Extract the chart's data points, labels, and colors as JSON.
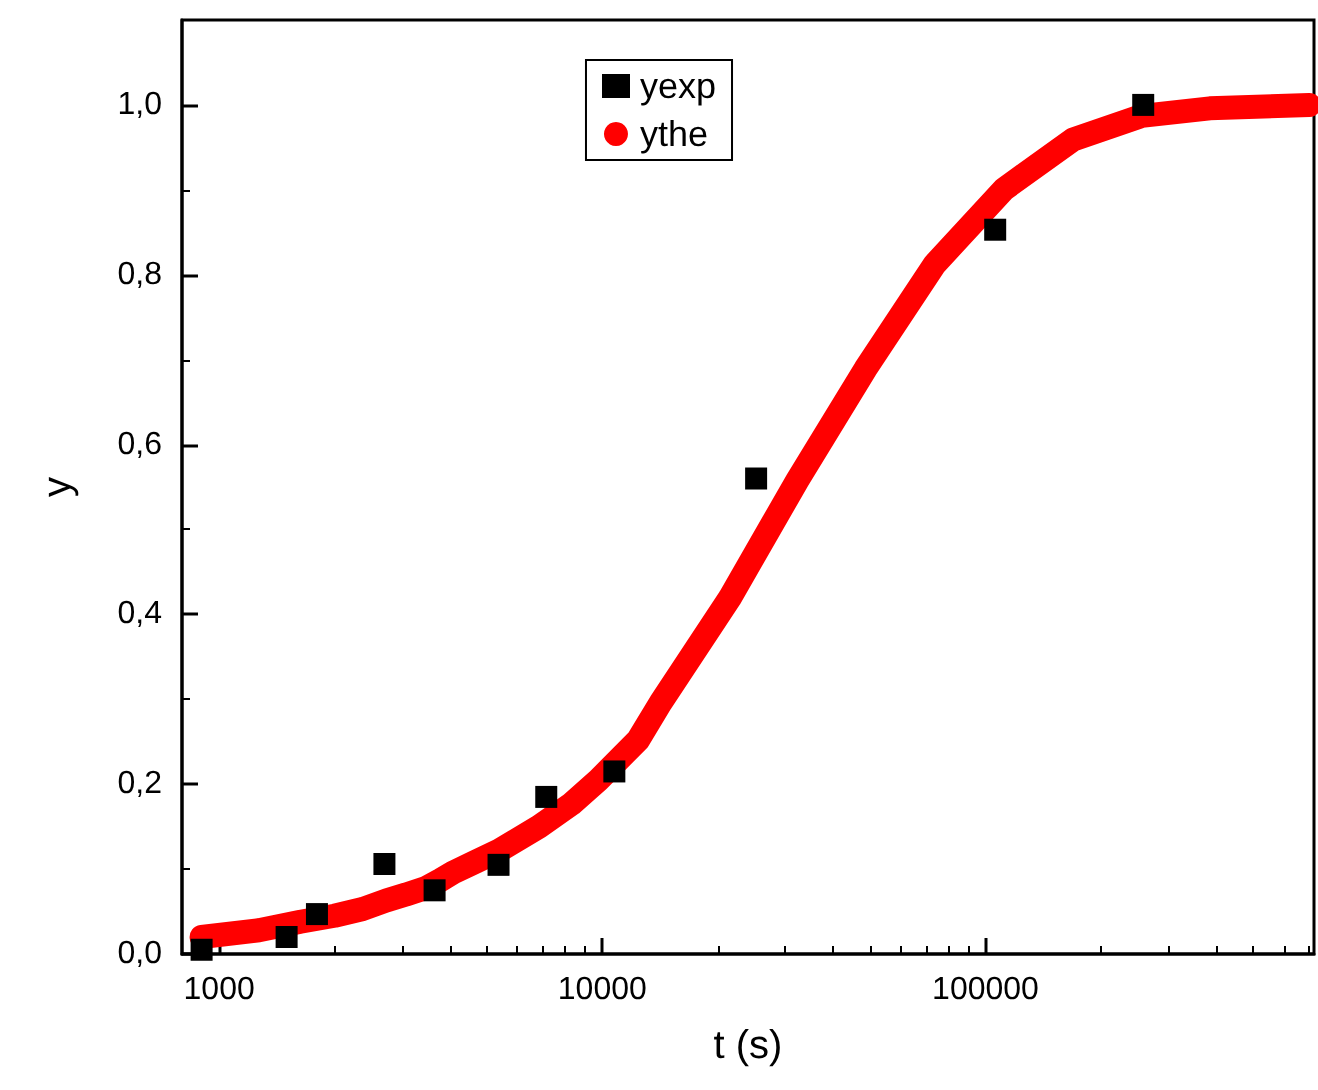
{
  "chart_data": {
    "type": "scatter",
    "xlabel": "t (s)",
    "ylabel": "y",
    "log": "x",
    "xlim": [
      800,
      720000
    ],
    "xticks": [
      1000,
      10000,
      100000
    ],
    "ylim": [
      0,
      1.1
    ],
    "yticks": [
      {
        "value": 0,
        "label": "0,0"
      },
      {
        "value": 0.2,
        "label": "0,2"
      },
      {
        "value": 0.4,
        "label": "0,4"
      },
      {
        "value": 0.6,
        "label": "0,6"
      },
      {
        "value": 0.8,
        "label": "0,8"
      },
      {
        "value": 1.0,
        "label": "1,0"
      }
    ],
    "grid": false,
    "legend": "top",
    "series": [
      {
        "name": "yexp",
        "type": "scatter",
        "marker": "square",
        "color": "#000000",
        "x": [
          900,
          1500,
          1800,
          2700,
          3650,
          5360,
          7140,
          10750,
          25200,
          106000,
          258000
        ],
        "values": [
          0.005,
          0.02,
          0.047,
          0.106,
          0.075,
          0.105,
          0.185,
          0.215,
          0.56,
          0.853,
          1.0
        ]
      },
      {
        "name": "ythe",
        "type": "line",
        "marker": "circle",
        "color": "#ff0000",
        "x": [
          900,
          1270,
          1630,
          2000,
          2370,
          2730,
          3070,
          3470,
          3780,
          4080,
          4590,
          5390,
          6840,
          8320,
          9770,
          12400,
          14200,
          21500,
          32300,
          48600,
          73600,
          112000,
          169000,
          256000,
          385000,
          700000
        ],
        "values": [
          0.02,
          0.028,
          0.038,
          0.045,
          0.053,
          0.063,
          0.07,
          0.078,
          0.087,
          0.096,
          0.107,
          0.122,
          0.15,
          0.177,
          0.205,
          0.252,
          0.296,
          0.419,
          0.558,
          0.689,
          0.812,
          0.901,
          0.959,
          0.987,
          0.996,
          1.0
        ]
      }
    ]
  }
}
